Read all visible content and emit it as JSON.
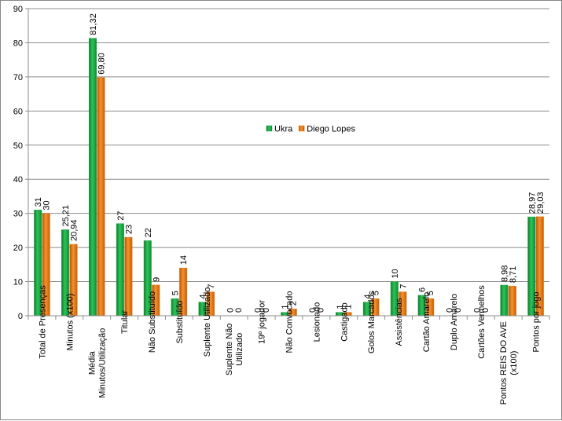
{
  "chart_data": {
    "type": "bar",
    "title": "",
    "xlabel": "",
    "ylabel": "",
    "ylim": [
      0,
      90
    ],
    "y_ticks": [
      0,
      10,
      20,
      30,
      40,
      50,
      60,
      70,
      80,
      90
    ],
    "grid": true,
    "legend_position": "center-right",
    "categories": [
      [
        "Total de Presenças"
      ],
      [
        "Minutos (x100)"
      ],
      [
        "Média",
        "Minutos/Utilização"
      ],
      [
        "Titular"
      ],
      [
        "Não Substituído"
      ],
      [
        "Substituído"
      ],
      [
        "Suplente Utilizado"
      ],
      [
        "Suplente Não",
        "Utilizado"
      ],
      [
        "19º jogador"
      ],
      [
        "Não Convocado"
      ],
      [
        "Lesionado"
      ],
      [
        "Castigado"
      ],
      [
        "Golos Marcados"
      ],
      [
        "Assistências"
      ],
      [
        "Cartão Amarelo"
      ],
      [
        "Duplo Amarelo"
      ],
      [
        "Cartões Vermelhos"
      ],
      [
        "Pontos REIS DO AVE",
        "(x100)"
      ],
      [
        "Pontos por jogo"
      ]
    ],
    "series": [
      {
        "name": "Ukra",
        "color": "#21a443",
        "values": [
          31,
          25.21,
          81.32,
          27,
          22,
          5,
          4,
          0,
          0,
          1,
          0,
          1,
          4,
          10,
          6,
          0,
          0,
          8.98,
          28.97
        ],
        "labels": [
          "31",
          "25,21",
          "81,32",
          "27",
          "22",
          "5",
          "4",
          "0",
          "0",
          "1",
          "0",
          "1",
          "4",
          "10",
          "6",
          "0",
          "0",
          "8,98",
          "28,97"
        ]
      },
      {
        "name": "Diego Lopes",
        "color": "#e8740f",
        "values": [
          30,
          20.94,
          69.8,
          23,
          9,
          14,
          7,
          0,
          0,
          2,
          0,
          1,
          5,
          7,
          5,
          0,
          0,
          8.71,
          29.03
        ],
        "labels": [
          "30",
          "20,94",
          "69,80",
          "23",
          "9",
          "14",
          "7",
          "0",
          "0",
          "2",
          "0",
          "1",
          "5",
          "7",
          "5",
          "0",
          "0",
          "8,71",
          "29,03"
        ]
      }
    ]
  }
}
